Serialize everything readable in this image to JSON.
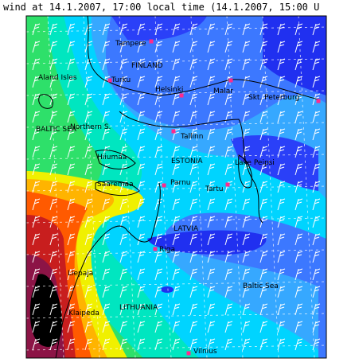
{
  "header": {
    "title": "wind at 14.1.2007, 17:00 local time (14.1.2007, 15:00 U"
  },
  "places": [
    {
      "label": "Tampere"
    },
    {
      "label": "FINLAND"
    },
    {
      "label": "Turku"
    },
    {
      "label": "Aland Isles"
    },
    {
      "label": "Helsinki"
    },
    {
      "label": "Malar"
    },
    {
      "label": "Skt. Peterburg"
    },
    {
      "label": "BALTIC SEA"
    },
    {
      "label": "Northern S."
    },
    {
      "label": "Tallinn"
    },
    {
      "label": "Hiiumaa"
    },
    {
      "label": "ESTONIA"
    },
    {
      "label": "Lake Peipsi"
    },
    {
      "label": "Saaremaa"
    },
    {
      "label": "Parnu"
    },
    {
      "label": "Tartu"
    },
    {
      "label": "LATVIA"
    },
    {
      "label": "Riga"
    },
    {
      "label": "Liepaja"
    },
    {
      "label": "Baltic Sea"
    },
    {
      "label": "LITHUANIA"
    },
    {
      "label": "Klaipeda"
    },
    {
      "label": "Vilnius"
    }
  ]
}
